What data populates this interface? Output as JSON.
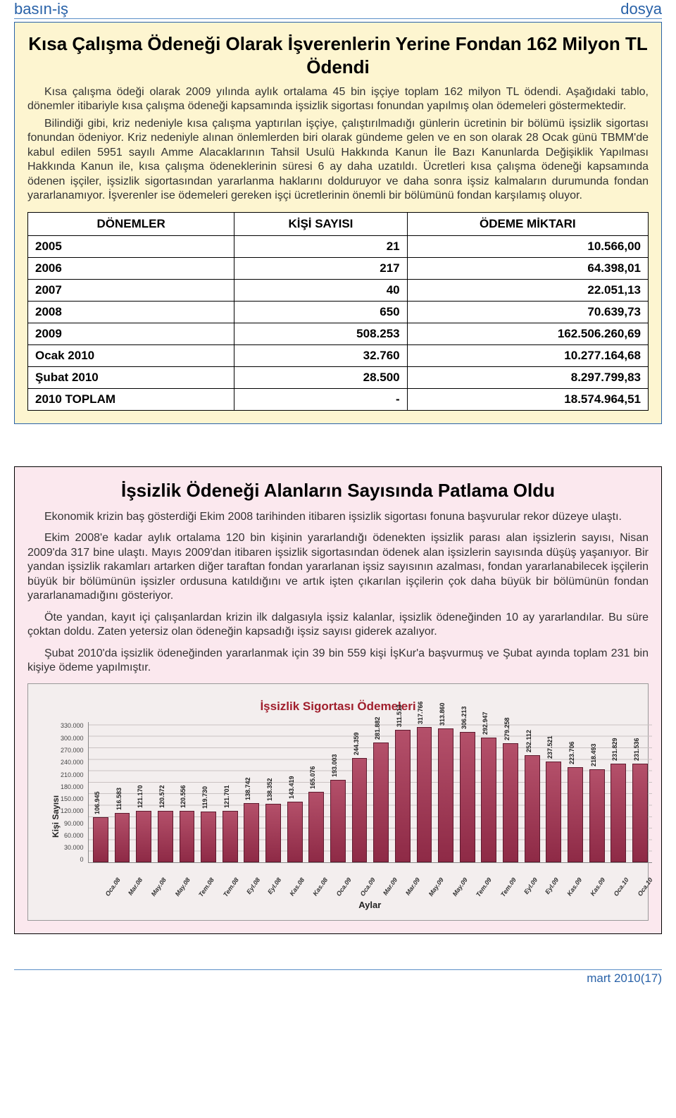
{
  "header": {
    "brand": "basın-iş",
    "tag": "dosya"
  },
  "yellow": {
    "title": "Kısa Çalışma Ödeneği Olarak İşverenlerin Yerine Fondan 162 Milyon TL Ödendi",
    "p1": "Kısa çalışma ödeği olarak 2009 yılında aylık ortalama 45 bin işçiye toplam 162 milyon TL ödendi. Aşağıdaki tablo, dönemler itibariyle kısa çalışma ödeneği kapsamında işsizlik sigortası fonundan yapılmış olan ödemeleri göstermektedir.",
    "p2": "Bilindiği gibi, kriz nedeniyle kısa çalışma yaptırılan işçiye, çalıştırılmadığı günlerin ücretinin bir bölümü işsizlik sigortası fonundan ödeniyor. Kriz nedeniyle alınan önlemlerden biri olarak gündeme gelen ve en son olarak 28 Ocak günü TBMM'de kabul edilen 5951 sayılı Amme Alacaklarının Tahsil Usulü Hakkında Kanun İle Bazı Kanunlarda Değişiklik Yapılması Hakkında Kanun ile, kısa çalışma ödeneklerinin süresi 6 ay daha uzatıldı. Ücretleri kısa çalışma ödeneği kapsamında ödenen işçiler, işsizlik sigortasından yararlanma haklarını dolduruyor ve daha sonra işsiz kalmaların durumunda fondan yararlanamıyor. İşverenler ise ödemeleri gereken işçi ücretlerinin önemli bir bölümünü fondan karşılamış oluyor."
  },
  "table": {
    "headers": [
      "DÖNEMLER",
      "KİŞİ SAYISI",
      "ÖDEME MİKTARI"
    ],
    "rows": [
      [
        "2005",
        "21",
        "10.566,00"
      ],
      [
        "2006",
        "217",
        "64.398,01"
      ],
      [
        "2007",
        "40",
        "22.051,13"
      ],
      [
        "2008",
        "650",
        "70.639,73"
      ],
      [
        "2009",
        "508.253",
        "162.506.260,69"
      ],
      [
        "Ocak 2010",
        "32.760",
        "10.277.164,68"
      ],
      [
        "Şubat 2010",
        "28.500",
        "8.297.799,83"
      ],
      [
        "2010 TOPLAM",
        "-",
        "18.574.964,51"
      ]
    ]
  },
  "pink": {
    "title": "İşsizlik Ödeneği Alanların Sayısında Patlama Oldu",
    "p1": "Ekonomik krizin baş gösterdiği Ekim 2008 tarihinden itibaren işsizlik sigortası fonuna başvurular rekor düzeye ulaştı.",
    "p2": "Ekim 2008'e kadar aylık ortalama 120 bin kişinin yararlandığı ödenekten işsizlik parası alan işsizlerin sayısı, Nisan 2009'da 317 bine ulaştı. Mayıs 2009'dan itibaren işsizlik sigortasından ödenek alan işsizlerin sayısında düşüş yaşanıyor. Bir yandan işsizlik rakamları artarken diğer taraftan fondan yararlanan işsiz sayısının azalması, fondan yararlanabilecek işçilerin büyük bir bölümünün işsizler ordusuna katıldığını ve artık işten çıkarılan işçilerin çok daha büyük bir bölümünün fondan yararlanamadığını gösteriyor.",
    "p3": "Öte yandan, kayıt içi çalışanlardan krizin ilk dalgasıyla işsiz kalanlar, işsizlik ödeneğinden 10 ay yararlandılar. Bu süre çoktan doldu. Zaten yetersiz olan ödeneğin kapsadığı işsiz sayısı giderek azalıyor.",
    "p4": "Şubat 2010'da işsizlik ödeneğinden yararlanmak için 39 bin 559 kişi İşKur'a başvurmuş ve Şubat ayında toplam 231 bin kişiye ödeme yapılmıştır."
  },
  "chart": {
    "title": "İşsizlik Sigortası Ödemeleri",
    "y_label": "Kişi Sayısı",
    "x_label": "Aylar",
    "ymax": 330000,
    "y_ticks": [
      "330.000",
      "300.000",
      "270.000",
      "240.000",
      "210.000",
      "180.000",
      "150.000",
      "120.000",
      "90.000",
      "60.000",
      "30.000",
      "0"
    ],
    "bar_color": "#8e2a46",
    "bars": [
      {
        "label": "Oca.08",
        "value": 106945,
        "display": "106.945"
      },
      {
        "label": "Mar.08",
        "value": 116583,
        "display": "116.583"
      },
      {
        "label": "May.08",
        "value": 121170,
        "display": "121.170"
      },
      {
        "label": "May.08",
        "value": 120572,
        "display": "120.572"
      },
      {
        "label": "Tem.08",
        "value": 120556,
        "display": "120.556"
      },
      {
        "label": "Tem.08",
        "value": 119730,
        "display": "119.730"
      },
      {
        "label": "Eyl.08",
        "value": 121701,
        "display": "121.701"
      },
      {
        "label": "Eyl.08",
        "value": 138742,
        "display": "138.742"
      },
      {
        "label": "Kas.08",
        "value": 138352,
        "display": "138.352"
      },
      {
        "label": "Kas.08",
        "value": 143419,
        "display": "143.419"
      },
      {
        "label": "Oca.09",
        "value": 165076,
        "display": "165.076"
      },
      {
        "label": "Oca.09",
        "value": 193003,
        "display": "193.003"
      },
      {
        "label": "Mar.09",
        "value": 244359,
        "display": "244.359"
      },
      {
        "label": "Mar.09",
        "value": 281882,
        "display": "281.882"
      },
      {
        "label": "May.09",
        "value": 311513,
        "display": "311.513"
      },
      {
        "label": "May.09",
        "value": 317766,
        "display": "317.766"
      },
      {
        "label": "Tem.09",
        "value": 313860,
        "display": "313.860"
      },
      {
        "label": "Tem.09",
        "value": 306213,
        "display": "306.213"
      },
      {
        "label": "Eyl.09",
        "value": 292947,
        "display": "292.947"
      },
      {
        "label": "Eyl.09",
        "value": 279258,
        "display": "279.258"
      },
      {
        "label": "Kas.09",
        "value": 252112,
        "display": "252.112"
      },
      {
        "label": "Kas.09",
        "value": 237521,
        "display": "237.521"
      },
      {
        "label": "Oca.10",
        "value": 223706,
        "display": "223.706"
      },
      {
        "label": "Oca.10",
        "value": 218493,
        "display": "218.493"
      },
      {
        "label": "",
        "value": 231829,
        "display": "231.829"
      },
      {
        "label": "",
        "value": 231536,
        "display": "231.536"
      }
    ]
  },
  "footer": "mart 2010(17)"
}
